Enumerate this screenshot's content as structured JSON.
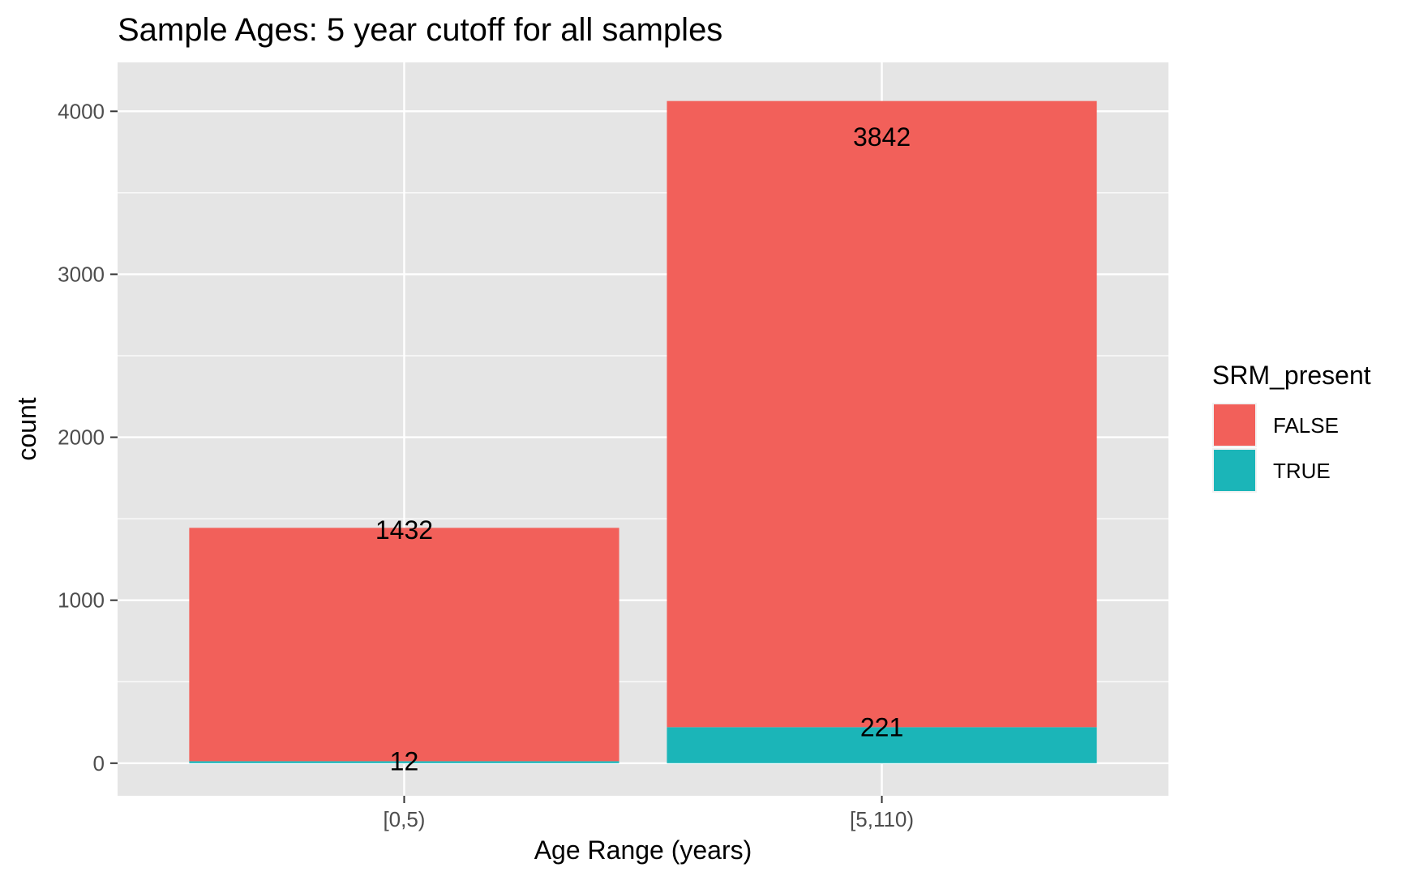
{
  "chart_data": {
    "type": "bar",
    "stacked": true,
    "title": "Sample Ages: 5 year cutoff for all samples",
    "xlabel": "Age Range (years)",
    "ylabel": "count",
    "categories": [
      "[0,5)",
      "[5,110)"
    ],
    "series": [
      {
        "name": "FALSE",
        "values": [
          1432,
          3842
        ],
        "color": "#f2605a"
      },
      {
        "name": "TRUE",
        "values": [
          12,
          221
        ],
        "color": "#1bb5b8"
      }
    ],
    "data_labels": {
      "FALSE": [
        "1432",
        "3842"
      ],
      "TRUE": [
        "12",
        "221"
      ]
    },
    "ylim": [
      -200,
      4300
    ],
    "yticks": [
      0,
      1000,
      2000,
      3000,
      4000
    ],
    "ytick_labels": [
      "0",
      "1000",
      "2000",
      "3000",
      "4000"
    ],
    "legend": {
      "title": "SRM_present",
      "position": "right"
    },
    "grid": true,
    "panel_background": "#e5e5e5",
    "grid_color": "#ffffff"
  }
}
